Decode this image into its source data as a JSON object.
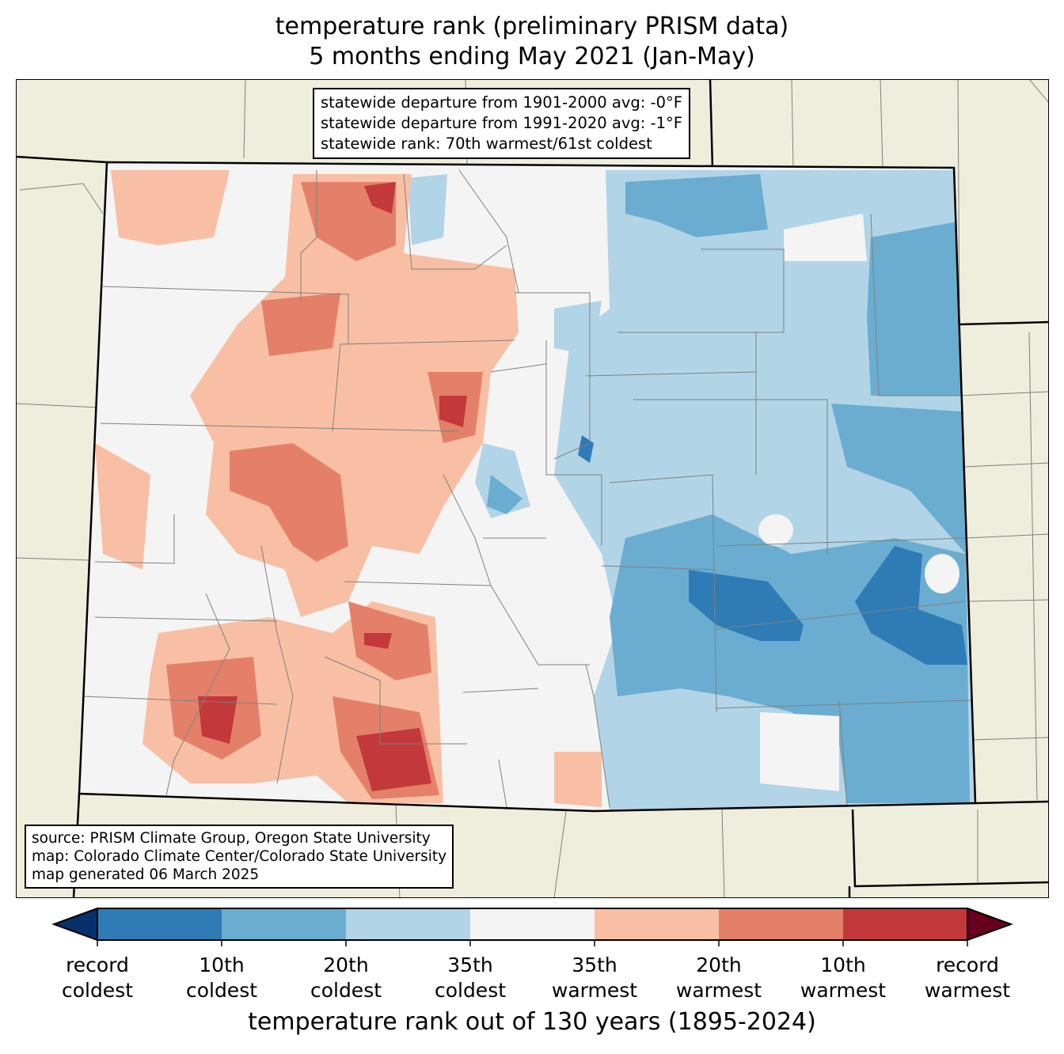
{
  "title": {
    "line1": "temperature rank (preliminary PRISM data)",
    "line2": "5 months ending May 2021 (Jan-May)"
  },
  "stats_box": {
    "line1": "statewide departure from 1901-2000 avg: -0°F",
    "line2": "statewide departure from 1991-2020 avg: -1°F",
    "line3": "statewide rank: 70th warmest/61st coldest"
  },
  "source_box": {
    "line1": "source: PRISM Climate Group, Oregon State University",
    "line2": "map: Colorado Climate Center/Colorado State University",
    "line3": "map generated 06 March 2025"
  },
  "colorbar": {
    "title": "temperature rank out of 130 years (1895-2024)",
    "extend_low_color": "#08306b",
    "extend_high_color": "#67001f",
    "colors": [
      "#2f7bb6",
      "#6aadd0",
      "#b2d4e7",
      "#f4f4f4",
      "#f8bfa4",
      "#e4806a",
      "#c3393b"
    ],
    "ticks": [
      {
        "l1": "record",
        "l2": "coldest"
      },
      {
        "l1": "10th",
        "l2": "coldest"
      },
      {
        "l1": "20th",
        "l2": "coldest"
      },
      {
        "l1": "35th",
        "l2": "coldest"
      },
      {
        "l1": "35th",
        "l2": "warmest"
      },
      {
        "l1": "20th",
        "l2": "warmest"
      },
      {
        "l1": "10th",
        "l2": "warmest"
      },
      {
        "l1": "record",
        "l2": "warmest"
      }
    ]
  },
  "colors": {
    "land_outside": "#efeedc",
    "county_line": "#808080",
    "state_line": "#000000"
  }
}
